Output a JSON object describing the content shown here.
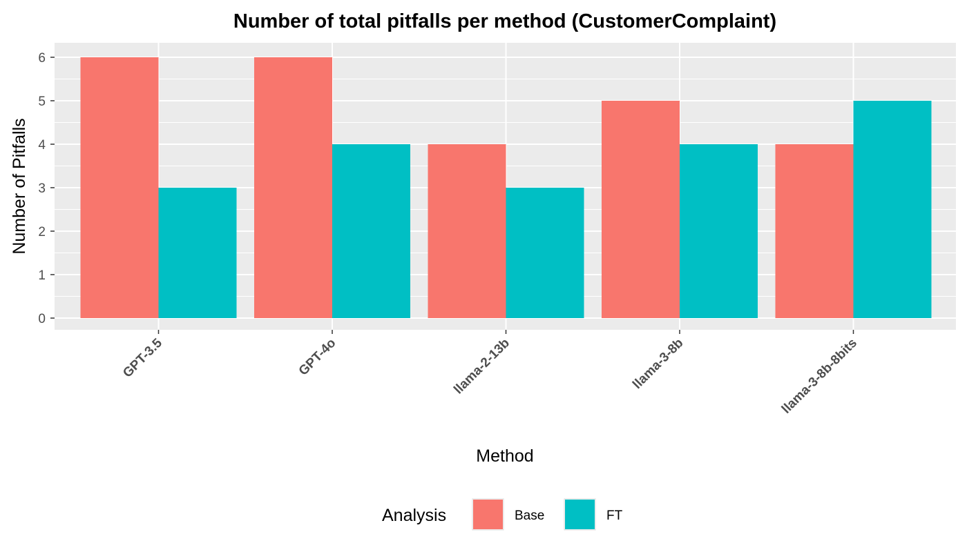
{
  "chart_data": {
    "type": "bar",
    "title": "Number of total pitfalls per method (CustomerComplaint)",
    "xlabel": "Method",
    "ylabel": "Number of Pitfalls",
    "categories": [
      "GPT-3.5",
      "GPT-4o",
      "llama-2-13b",
      "llama-3-8b",
      "llama-3-8b-8bits"
    ],
    "series": [
      {
        "name": "Base",
        "color": "#F8766D",
        "values": [
          6,
          6,
          4,
          5,
          4
        ]
      },
      {
        "name": "FT",
        "color": "#00BFC4",
        "values": [
          3,
          4,
          3,
          4,
          5
        ]
      }
    ],
    "ylim": [
      0,
      6
    ],
    "yticks": [
      "0",
      "1",
      "2",
      "3",
      "4",
      "5",
      "6"
    ],
    "grid": true,
    "legend": {
      "title": "Analysis",
      "position": "bottom"
    },
    "panel_background": "#EBEBEB"
  }
}
